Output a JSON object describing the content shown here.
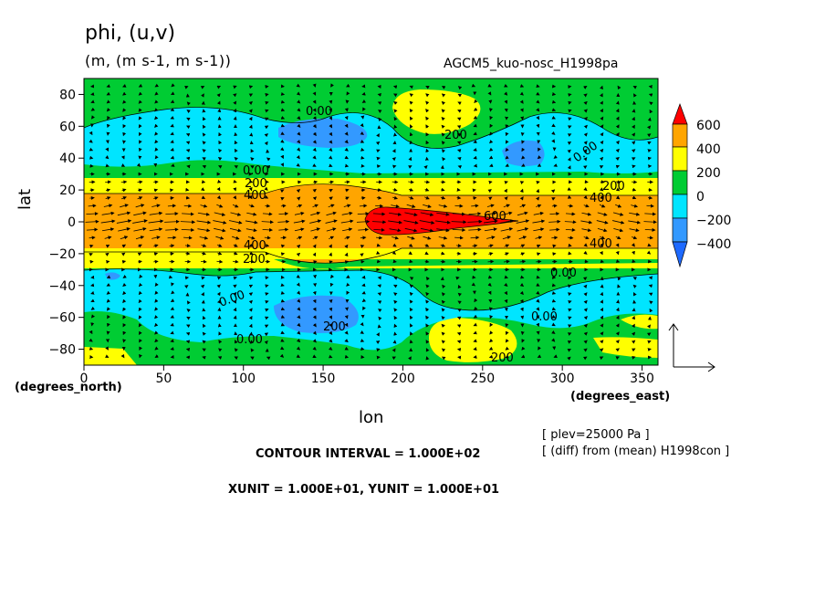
{
  "header": {
    "title": "phi, (u,v)",
    "units": "(m, (m s-1, m s-1))",
    "experiment": "AGCM5_kuo-nosc_H1998pa"
  },
  "axes": {
    "xlabel": "lon",
    "ylabel": "lat",
    "xunit_note": "(degrees_east)",
    "yunit_note": "(degrees_north)"
  },
  "info": {
    "plev": "[ plev=25000 Pa ]",
    "diff": "[ (diff) from (mean) H1998con ]",
    "contour_interval": "CONTOUR INTERVAL = 1.000E+02",
    "units_line": "XUNIT = 1.000E+01, YUNIT = 1.000E+01"
  },
  "colorbar": {
    "labels": [
      "600",
      "400",
      "200",
      "0",
      "−200",
      "−400"
    ],
    "colors": [
      "#ff0000",
      "#ffa500",
      "#ffff00",
      "#00cc33",
      "#00e5ff",
      "#3399ff",
      "#1e6aff"
    ]
  },
  "chart_data": {
    "type": "contour",
    "variable": "phi",
    "xlim": [
      0,
      360
    ],
    "ylim": [
      -90,
      90
    ],
    "x_ticks": [
      "0",
      "50",
      "100",
      "150",
      "200",
      "250",
      "300",
      "350"
    ],
    "y_ticks": [
      "80",
      "60",
      "40",
      "20",
      "0",
      "−20",
      "−40",
      "−60",
      "−80"
    ],
    "contour_labels": [
      "0.00",
      "0.00",
      "0.00",
      "0.00",
      "0.00",
      "0.00",
      "0.00",
      "200",
      "200",
      "200",
      "200",
      "200",
      "200",
      "400",
      "400",
      "400",
      "400",
      "600"
    ]
  }
}
